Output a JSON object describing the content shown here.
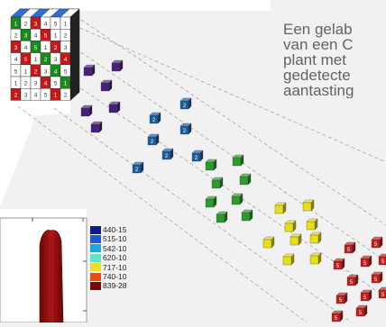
{
  "caption": {
    "lines": [
      "Een gelab",
      "van een C",
      "plant met",
      "gedetecte",
      "aantasting"
    ]
  },
  "legend": {
    "items": [
      {
        "label": "440-15",
        "color": "#0a1c8c"
      },
      {
        "label": "515-10",
        "color": "#1f5ad6"
      },
      {
        "label": "542-10",
        "color": "#19a8e6"
      },
      {
        "label": "620-10",
        "color": "#5fe3c9"
      },
      {
        "label": "717-10",
        "color": "#f0dd2a"
      },
      {
        "label": "740-10",
        "color": "#f04a12"
      },
      {
        "label": "839-28",
        "color": "#7a0a0a"
      }
    ]
  },
  "cube_labels": {
    "mosaic": [
      "1",
      "2",
      "3",
      "4",
      "5"
    ],
    "blue": "2",
    "red": "5"
  },
  "colors": {
    "purple": "#4a1f7a",
    "blue": "#1a5c9e",
    "green": "#2e9a2e",
    "yellow": "#e8de1a",
    "red": "#c21c1c",
    "plot_fill": "#8c1212"
  }
}
